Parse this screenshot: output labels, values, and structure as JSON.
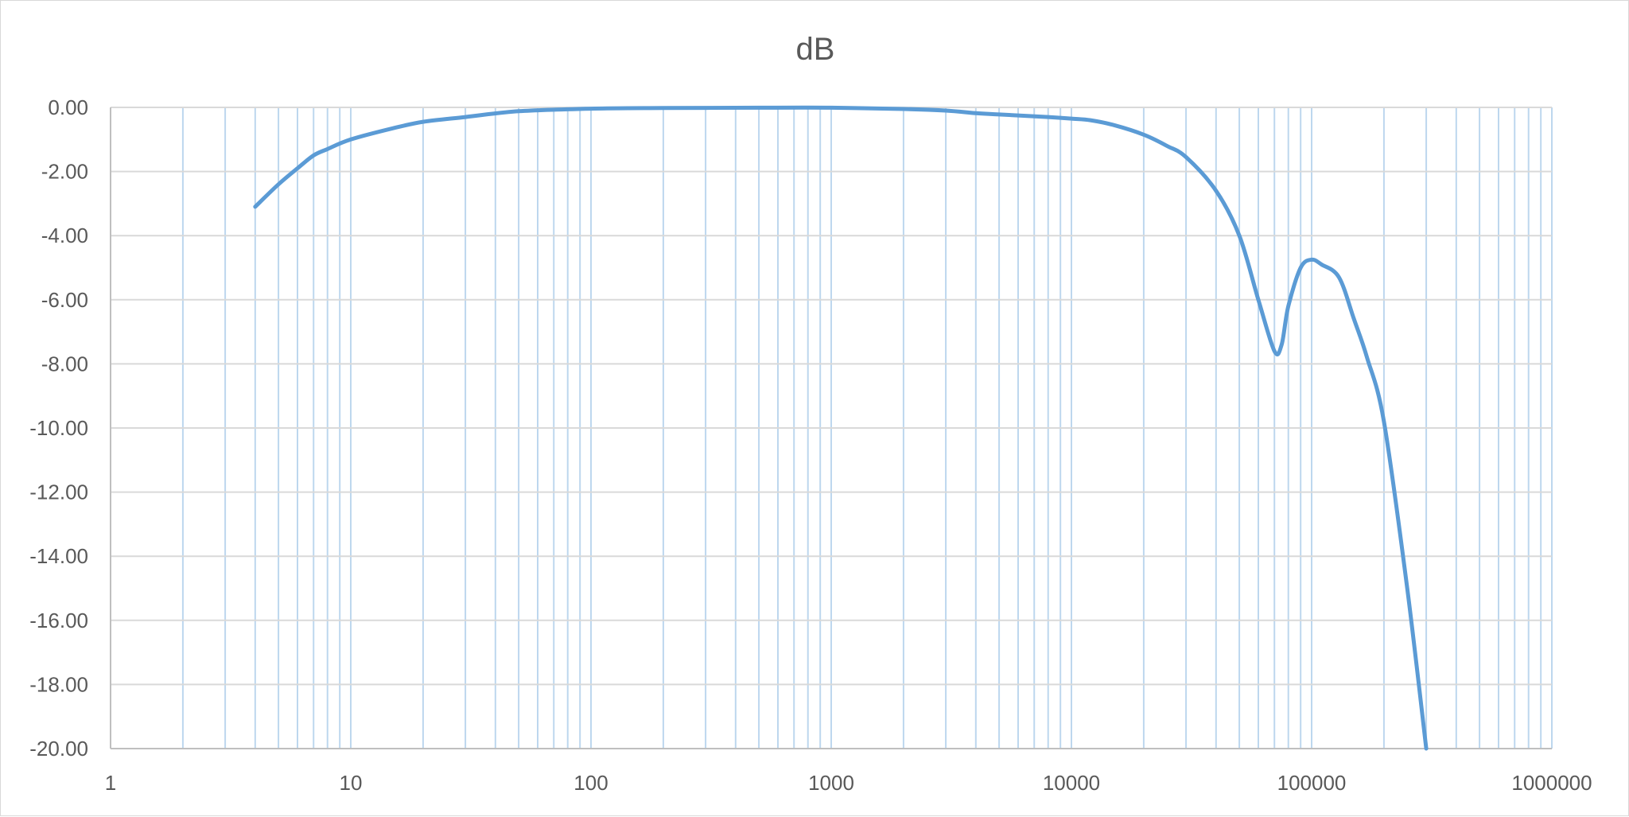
{
  "chart_data": {
    "type": "line",
    "title": "dB",
    "xlabel": "",
    "ylabel": "",
    "x_scale": "log",
    "xlim": [
      1,
      1000000
    ],
    "ylim": [
      -20,
      0
    ],
    "x_ticks": [
      "1",
      "10",
      "100",
      "1000",
      "10000",
      "100000",
      "1000000"
    ],
    "y_ticks": [
      "0.00",
      "-2.00",
      "-4.00",
      "-6.00",
      "-8.00",
      "-10.00",
      "-12.00",
      "-14.00",
      "-16.00",
      "-18.00",
      "-20.00"
    ],
    "grid": {
      "major_y": true,
      "minor_x": true
    },
    "legend": "none",
    "colors": {
      "series": "#5b9bd5",
      "x_grid": "#bdd7ee",
      "y_grid": "#d9d9d9",
      "axis": "#bfbfbf",
      "text": "#595959"
    },
    "series": [
      {
        "x": [
          4,
          5,
          6,
          7,
          8,
          10,
          15,
          20,
          30,
          50,
          100,
          200,
          500,
          1000,
          2000,
          3000,
          4000,
          5000,
          8000,
          10000,
          12000,
          15000,
          20000,
          25000,
          30000,
          40000,
          50000,
          60000,
          70000,
          75000,
          80000,
          90000,
          100000,
          110000,
          130000,
          150000,
          170000,
          200000,
          250000,
          300000
        ],
        "y": [
          -3.1,
          -2.4,
          -1.9,
          -1.5,
          -1.3,
          -1.0,
          -0.65,
          -0.45,
          -0.3,
          -0.12,
          -0.04,
          -0.02,
          -0.01,
          -0.01,
          -0.05,
          -0.1,
          -0.18,
          -0.22,
          -0.3,
          -0.35,
          -0.4,
          -0.55,
          -0.85,
          -1.2,
          -1.55,
          -2.6,
          -4.0,
          -6.0,
          -7.6,
          -7.4,
          -6.2,
          -5.0,
          -4.75,
          -4.9,
          -5.3,
          -6.6,
          -7.8,
          -9.8,
          -15.0,
          -20.0
        ]
      }
    ]
  }
}
